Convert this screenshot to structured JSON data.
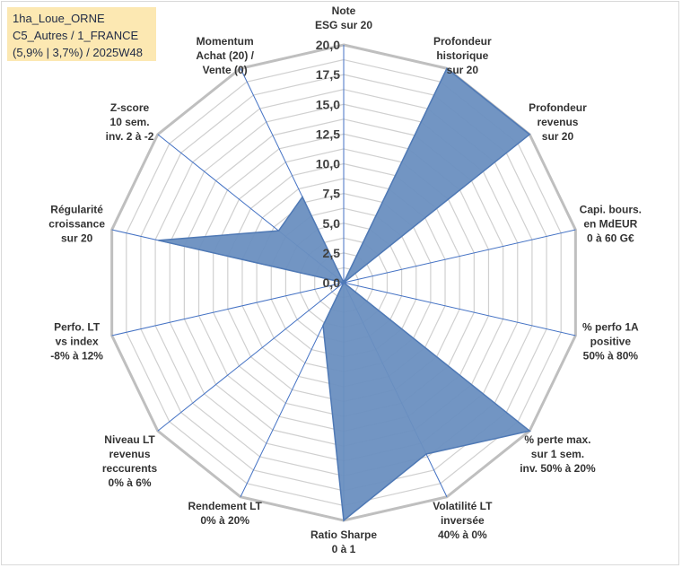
{
  "info": {
    "line1": "1ha_Loue_ORNE",
    "line2": "C5_Autres / 1_FRANCE",
    "line3": "(5,9% | 3,7%) / 2025W48"
  },
  "chart_data": {
    "type": "radar",
    "title": "",
    "range": [
      0,
      20
    ],
    "ticks": [
      "0,0",
      "2,5",
      "5,0",
      "7,5",
      "10,0",
      "12,5",
      "15,0",
      "17,5",
      "20,0"
    ],
    "tick_values": [
      0,
      2.5,
      5,
      7.5,
      10,
      12.5,
      15,
      17.5,
      20
    ],
    "grid": true,
    "fill_color": "#6a8fc0",
    "stroke_color": "#4f79b5",
    "grid_color": "#d0d0d0",
    "outer_color": "#bfbfbf",
    "spoke_color": "#4472c4",
    "axes": [
      {
        "lines": [
          "Note",
          "ESG sur 20"
        ],
        "value": 0
      },
      {
        "lines": [
          "Profondeur",
          "historique",
          "sur 20"
        ],
        "value": 20
      },
      {
        "lines": [
          "Profondeur",
          "revenus",
          "sur 20"
        ],
        "value": 20
      },
      {
        "lines": [
          "Capi. bours.",
          "en MdEUR",
          "0 à 60 G€"
        ],
        "value": 0
      },
      {
        "lines": [
          "% perfo 1A",
          "positive",
          "50% à 80%"
        ],
        "value": 0
      },
      {
        "lines": [
          "% perte max.",
          "sur 1 sem.",
          "inv. 50% à 20%"
        ],
        "value": 20
      },
      {
        "lines": [
          "Volatilité LT",
          "inversée",
          "40% à 0%"
        ],
        "value": 16
      },
      {
        "lines": [
          "Ratio Sharpe",
          "0 à 1"
        ],
        "value": 20
      },
      {
        "lines": [
          "Rendement LT",
          "0% à 20%"
        ],
        "value": 4
      },
      {
        "lines": [
          "Niveau LT",
          "revenus",
          "reccurents",
          "0% à 6%"
        ],
        "value": 0
      },
      {
        "lines": [
          "Perfo. LT",
          "vs index",
          "-8% à 12%"
        ],
        "value": 0
      },
      {
        "lines": [
          "Régularité",
          "croissance",
          "sur 20"
        ],
        "value": 16
      },
      {
        "lines": [
          "Z-score",
          "10 sem.",
          "inv. 2 à -2"
        ],
        "value": 7
      },
      {
        "lines": [
          "Momentum",
          "Achat (20) /",
          "Vente (0)"
        ],
        "value": 8
      }
    ]
  }
}
